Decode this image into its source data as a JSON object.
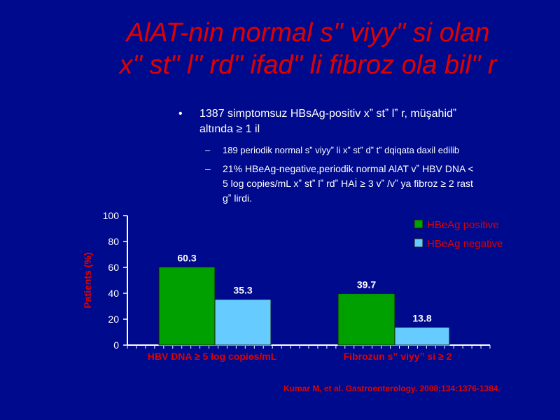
{
  "slide": {
    "title_line1": "AlAT-nin normal s\" viyy\" si olan",
    "title_line2": "x\" st\" l\" rd\"  ifad\" li fibroz ola bil\" r"
  },
  "bullets": {
    "main_line1": "1387 simptomsuz HBsAg-positiv xˮ stˮ lˮ r, müşahidˮ",
    "main_line2": "altında ≥ 1 il",
    "sub1": "189 periodik normal sˮ viyyˮ li xˮ stˮ dˮ tˮ dqiqata daxil edilib",
    "sub2_line1": "21% HBeAg-negative,periodik normal AlAT vˮ   HBV DNA <",
    "sub2_line2": "5 log copies/mL xˮ stˮ lˮ rdˮ  HAİ ≥ 3 vˮ /vˮ  ya fibroz ≥ 2 rast",
    "sub2_line3": "gˮ lirdi."
  },
  "citation": "Kumar M, et al. Gastroenterology. 2008;134:1376-1384.",
  "colors": {
    "background": "#000a8c",
    "title": "#e00000",
    "hbeag_positive": "#00a000",
    "hbeag_negative": "#66ccff",
    "axis_label": "#e00000"
  },
  "chart_data": {
    "type": "bar",
    "categories": [
      "HBV DNA ≥ 5 log copies/mL",
      "Fibrozun sˮ viyyˮ si ≥ 2"
    ],
    "series": [
      {
        "name": "HBeAg positive",
        "values": [
          60.3,
          39.7
        ]
      },
      {
        "name": "HBeAg negative",
        "values": [
          35.3,
          13.8
        ]
      }
    ],
    "xlabel": "",
    "ylabel": "Patients (%)",
    "ylim": [
      0,
      100
    ],
    "yticks": [
      0,
      20,
      40,
      60,
      80,
      100
    ],
    "grid": false,
    "legend_position": "top-right",
    "data_labels": true
  }
}
